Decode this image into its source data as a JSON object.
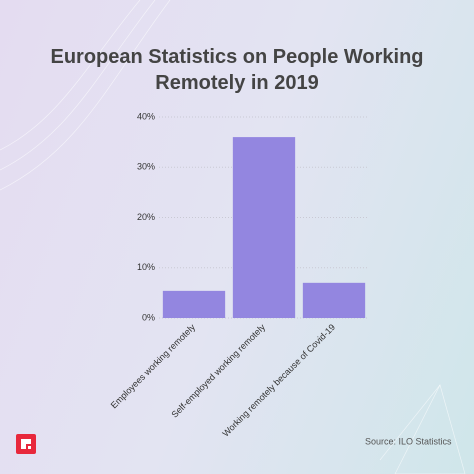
{
  "chart_data": {
    "type": "bar",
    "title": "European Statistics on People Working Remotely in 2019",
    "categories": [
      "Employees working remotely",
      "Self-employed working remotely",
      "Working remotely because of Covid-19"
    ],
    "values": [
      5.4,
      36,
      7
    ],
    "color": "#9386e0",
    "ylim": [
      0,
      40
    ],
    "yticks": [
      {
        "value": 0,
        "label": "0%"
      },
      {
        "value": 10,
        "label": "10%"
      },
      {
        "value": 20,
        "label": "20%"
      },
      {
        "value": 30,
        "label": "30%"
      },
      {
        "value": 40,
        "label": "40%"
      }
    ],
    "grid": true,
    "source": "Source: ILO Statistics"
  }
}
